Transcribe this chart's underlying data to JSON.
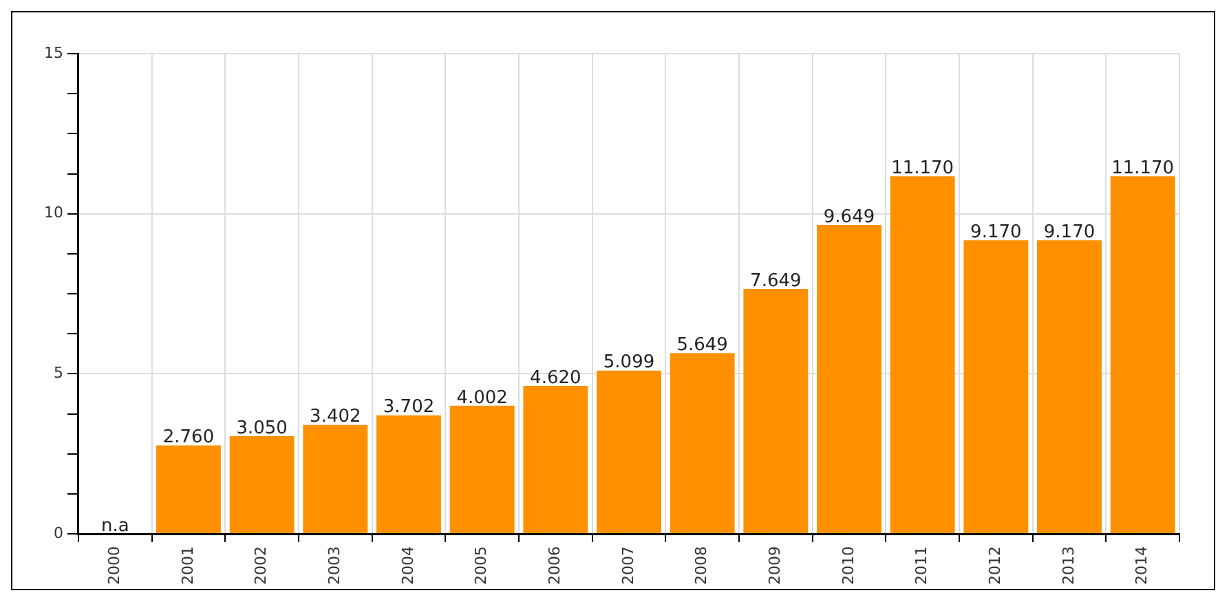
{
  "chart_data": {
    "type": "bar",
    "categories": [
      "2000",
      "2001",
      "2002",
      "2003",
      "2004",
      "2005",
      "2006",
      "2007",
      "2008",
      "2009",
      "2010",
      "2011",
      "2012",
      "2013",
      "2014"
    ],
    "values": [
      null,
      2.76,
      3.05,
      3.402,
      3.702,
      4.002,
      4.62,
      5.099,
      5.649,
      7.649,
      9.649,
      11.17,
      9.17,
      9.17,
      11.17
    ],
    "value_labels": [
      "n.a",
      "2.760",
      "3.050",
      "3.402",
      "3.702",
      "4.002",
      "4.620",
      "5.099",
      "5.649",
      "7.649",
      "9.649",
      "11.170",
      "9.170",
      "9.170",
      "11.170"
    ],
    "color": "#ff9000",
    "ylim": [
      0,
      15
    ],
    "yticks": [
      0,
      {
        "value": 1.25,
        "label": null
      },
      {
        "value": 2.5,
        "label": null
      },
      {
        "value": 3.75,
        "label": null
      },
      5,
      {
        "value": 6.25,
        "label": null
      },
      {
        "value": 7.5,
        "label": null
      },
      {
        "value": 8.75,
        "label": null
      },
      10,
      {
        "value": 11.25,
        "label": null
      },
      {
        "value": 12.5,
        "label": null
      },
      {
        "value": 13.75,
        "label": null
      },
      15
    ],
    "grid": true
  }
}
